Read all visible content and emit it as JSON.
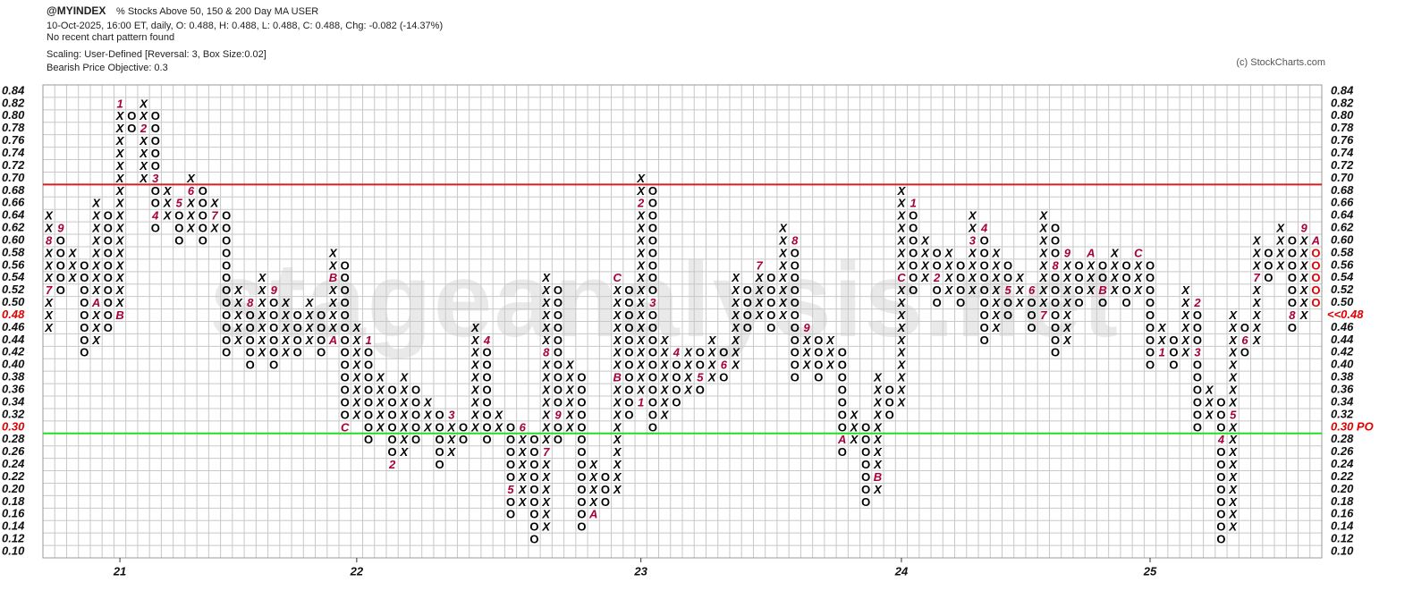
{
  "chart_data": {
    "type": "point_and_figure",
    "symbol": "@MYINDEX",
    "title": "% Stocks Above 50, 150 & 200 Day MA  USER",
    "info": "10-Oct-2025, 16:00 ET, daily, O: 0.488, H: 0.488, L: 0.488, C: 0.488, Chg: -0.082 (-14.37%)",
    "pattern_note": "No recent chart pattern found",
    "scaling": "Scaling: User-Defined [Reversal: 3, Box Size:0.02]",
    "objective": "Bearish Price Objective: 0.3",
    "copyright": "(c) StockCharts.com",
    "watermark": "stageanalysis.net",
    "box_size": 0.02,
    "ylim": [
      0.09,
      0.85
    ],
    "yticks": [
      0.84,
      0.82,
      {
        "value": 0.8,
        "label": "0.80"
      },
      0.78,
      0.76,
      0.74,
      0.72,
      {
        "value": 0.7,
        "label": "0.70"
      },
      0.68,
      0.66,
      0.64,
      0.62,
      {
        "value": 0.6,
        "label": "0.60"
      },
      0.58,
      0.56,
      0.54,
      0.52,
      {
        "value": 0.5,
        "label": "0.50"
      },
      0.48,
      0.46,
      0.44,
      0.42,
      {
        "value": 0.4,
        "label": "0.40"
      },
      0.38,
      0.36,
      0.34,
      0.32,
      {
        "value": 0.3,
        "label": "0.30"
      },
      0.28,
      0.26,
      0.24,
      0.22,
      {
        "value": 0.2,
        "label": "0.20"
      },
      0.18,
      0.16,
      0.14,
      0.12,
      {
        "value": 0.1,
        "label": "0.10"
      }
    ],
    "resistance_line": {
      "value": 0.7,
      "color": "#d42020"
    },
    "objective_line": {
      "value": 0.3,
      "color": "#22dd22",
      "label": "0.30 PO"
    },
    "last_price": {
      "value": 0.48,
      "label": "<<0.48"
    },
    "colors": {
      "box": "#000000",
      "month": "#a8003a",
      "current": "#e00000",
      "highlight": "#e00000"
    },
    "columns": [
      {
        "t": "X",
        "lo": 0.46,
        "hi": 0.64,
        "m": [
          [
            0.52,
            "7"
          ],
          [
            0.6,
            "8"
          ]
        ]
      },
      {
        "t": "O",
        "lo": 0.52,
        "hi": 0.62,
        "m": [
          [
            0.62,
            "9"
          ]
        ]
      },
      {
        "t": "X",
        "lo": 0.54,
        "hi": 0.58,
        "m": []
      },
      {
        "t": "O",
        "lo": 0.42,
        "hi": 0.56,
        "m": []
      },
      {
        "t": "X",
        "lo": 0.44,
        "hi": 0.66,
        "m": [
          [
            0.5,
            "A"
          ]
        ]
      },
      {
        "t": "O",
        "lo": 0.46,
        "hi": 0.64,
        "m": []
      },
      {
        "t": "X",
        "lo": 0.48,
        "hi": 0.82,
        "m": [
          [
            0.48,
            "B"
          ],
          [
            0.82,
            "1"
          ]
        ],
        "label": "21"
      },
      {
        "t": "O",
        "lo": 0.78,
        "hi": 0.8,
        "m": []
      },
      {
        "t": "X",
        "lo": 0.7,
        "hi": 0.82,
        "m": [
          [
            0.78,
            "2"
          ]
        ]
      },
      {
        "t": "O",
        "lo": 0.62,
        "hi": 0.8,
        "m": [
          [
            0.7,
            "3"
          ],
          [
            0.64,
            "4"
          ]
        ]
      },
      {
        "t": "X",
        "lo": 0.64,
        "hi": 0.68,
        "m": []
      },
      {
        "t": "O",
        "lo": 0.6,
        "hi": 0.66,
        "m": [
          [
            0.66,
            "5"
          ]
        ]
      },
      {
        "t": "X",
        "lo": 0.62,
        "hi": 0.7,
        "m": [
          [
            0.68,
            "6"
          ]
        ]
      },
      {
        "t": "O",
        "lo": 0.6,
        "hi": 0.68,
        "m": []
      },
      {
        "t": "X",
        "lo": 0.62,
        "hi": 0.66,
        "m": [
          [
            0.64,
            "7"
          ]
        ]
      },
      {
        "t": "O",
        "lo": 0.42,
        "hi": 0.64,
        "m": []
      },
      {
        "t": "X",
        "lo": 0.44,
        "hi": 0.52,
        "m": []
      },
      {
        "t": "O",
        "lo": 0.4,
        "hi": 0.5,
        "m": [
          [
            0.5,
            "8"
          ]
        ]
      },
      {
        "t": "X",
        "lo": 0.42,
        "hi": 0.54,
        "m": []
      },
      {
        "t": "O",
        "lo": 0.4,
        "hi": 0.52,
        "m": [
          [
            0.52,
            "9"
          ]
        ]
      },
      {
        "t": "X",
        "lo": 0.42,
        "hi": 0.5,
        "m": []
      },
      {
        "t": "O",
        "lo": 0.42,
        "hi": 0.48,
        "m": []
      },
      {
        "t": "X",
        "lo": 0.44,
        "hi": 0.5,
        "m": []
      },
      {
        "t": "O",
        "lo": 0.42,
        "hi": 0.48,
        "m": []
      },
      {
        "t": "X",
        "lo": 0.44,
        "hi": 0.58,
        "m": [
          [
            0.44,
            "A"
          ],
          [
            0.54,
            "B"
          ]
        ]
      },
      {
        "t": "O",
        "lo": 0.3,
        "hi": 0.56,
        "m": [
          [
            0.3,
            "C"
          ]
        ]
      },
      {
        "t": "X",
        "lo": 0.32,
        "hi": 0.46,
        "m": [],
        "label": "22"
      },
      {
        "t": "O",
        "lo": 0.28,
        "hi": 0.44,
        "m": [
          [
            0.44,
            "1"
          ]
        ]
      },
      {
        "t": "X",
        "lo": 0.3,
        "hi": 0.38,
        "m": []
      },
      {
        "t": "O",
        "lo": 0.24,
        "hi": 0.36,
        "m": [
          [
            0.24,
            "2"
          ]
        ]
      },
      {
        "t": "X",
        "lo": 0.26,
        "hi": 0.38,
        "m": []
      },
      {
        "t": "O",
        "lo": 0.28,
        "hi": 0.36,
        "m": []
      },
      {
        "t": "X",
        "lo": 0.3,
        "hi": 0.34,
        "m": []
      },
      {
        "t": "O",
        "lo": 0.24,
        "hi": 0.32,
        "m": []
      },
      {
        "t": "X",
        "lo": 0.26,
        "hi": 0.32,
        "m": [
          [
            0.32,
            "3"
          ]
        ]
      },
      {
        "t": "O",
        "lo": 0.28,
        "hi": 0.3,
        "m": []
      },
      {
        "t": "X",
        "lo": 0.3,
        "hi": 0.46,
        "m": []
      },
      {
        "t": "O",
        "lo": 0.28,
        "hi": 0.44,
        "m": [
          [
            0.44,
            "4"
          ]
        ]
      },
      {
        "t": "X",
        "lo": 0.3,
        "hi": 0.32,
        "m": []
      },
      {
        "t": "O",
        "lo": 0.16,
        "hi": 0.3,
        "m": [
          [
            0.2,
            "5"
          ]
        ]
      },
      {
        "t": "X",
        "lo": 0.18,
        "hi": 0.3,
        "m": [
          [
            0.3,
            "6"
          ]
        ]
      },
      {
        "t": "O",
        "lo": 0.12,
        "hi": 0.28,
        "m": []
      },
      {
        "t": "X",
        "lo": 0.14,
        "hi": 0.54,
        "m": [
          [
            0.26,
            "7"
          ],
          [
            0.42,
            "8"
          ]
        ]
      },
      {
        "t": "O",
        "lo": 0.28,
        "hi": 0.52,
        "m": [
          [
            0.32,
            "9"
          ]
        ]
      },
      {
        "t": "X",
        "lo": 0.3,
        "hi": 0.4,
        "m": []
      },
      {
        "t": "O",
        "lo": 0.14,
        "hi": 0.38,
        "m": []
      },
      {
        "t": "X",
        "lo": 0.16,
        "hi": 0.24,
        "m": [
          [
            0.16,
            "A"
          ]
        ]
      },
      {
        "t": "O",
        "lo": 0.18,
        "hi": 0.22,
        "m": []
      },
      {
        "t": "X",
        "lo": 0.2,
        "hi": 0.54,
        "m": [
          [
            0.38,
            "B"
          ],
          [
            0.54,
            "C"
          ]
        ]
      },
      {
        "t": "O",
        "lo": 0.32,
        "hi": 0.52,
        "m": []
      },
      {
        "t": "X",
        "lo": 0.34,
        "hi": 0.7,
        "m": [
          [
            0.34,
            "1"
          ],
          [
            0.66,
            "2"
          ]
        ],
        "label": "23"
      },
      {
        "t": "O",
        "lo": 0.3,
        "hi": 0.68,
        "m": [
          [
            0.5,
            "3"
          ]
        ]
      },
      {
        "t": "X",
        "lo": 0.32,
        "hi": 0.44,
        "m": []
      },
      {
        "t": "O",
        "lo": 0.34,
        "hi": 0.42,
        "m": [
          [
            0.42,
            "4"
          ]
        ]
      },
      {
        "t": "X",
        "lo": 0.36,
        "hi": 0.42,
        "m": []
      },
      {
        "t": "O",
        "lo": 0.36,
        "hi": 0.42,
        "m": [
          [
            0.38,
            "5"
          ]
        ]
      },
      {
        "t": "X",
        "lo": 0.38,
        "hi": 0.44,
        "m": []
      },
      {
        "t": "O",
        "lo": 0.38,
        "hi": 0.42,
        "m": [
          [
            0.4,
            "6"
          ]
        ]
      },
      {
        "t": "X",
        "lo": 0.4,
        "hi": 0.54,
        "m": []
      },
      {
        "t": "O",
        "lo": 0.46,
        "hi": 0.52,
        "m": []
      },
      {
        "t": "X",
        "lo": 0.48,
        "hi": 0.56,
        "m": [
          [
            0.56,
            "7"
          ]
        ]
      },
      {
        "t": "O",
        "lo": 0.46,
        "hi": 0.54,
        "m": []
      },
      {
        "t": "X",
        "lo": 0.48,
        "hi": 0.62,
        "m": []
      },
      {
        "t": "O",
        "lo": 0.38,
        "hi": 0.6,
        "m": [
          [
            0.6,
            "8"
          ]
        ]
      },
      {
        "t": "X",
        "lo": 0.4,
        "hi": 0.46,
        "m": [
          [
            0.46,
            "9"
          ]
        ]
      },
      {
        "t": "O",
        "lo": 0.38,
        "hi": 0.44,
        "m": []
      },
      {
        "t": "X",
        "lo": 0.4,
        "hi": 0.44,
        "m": []
      },
      {
        "t": "O",
        "lo": 0.26,
        "hi": 0.42,
        "m": [
          [
            0.28,
            "A"
          ]
        ]
      },
      {
        "t": "X",
        "lo": 0.28,
        "hi": 0.32,
        "m": []
      },
      {
        "t": "O",
        "lo": 0.18,
        "hi": 0.3,
        "m": []
      },
      {
        "t": "X",
        "lo": 0.2,
        "hi": 0.38,
        "m": [
          [
            0.22,
            "B"
          ]
        ]
      },
      {
        "t": "O",
        "lo": 0.32,
        "hi": 0.36,
        "m": []
      },
      {
        "t": "X",
        "lo": 0.34,
        "hi": 0.68,
        "m": [
          [
            0.54,
            "C"
          ]
        ],
        "label": "24"
      },
      {
        "t": "O",
        "lo": 0.52,
        "hi": 0.66,
        "m": [
          [
            0.66,
            "1"
          ]
        ]
      },
      {
        "t": "X",
        "lo": 0.54,
        "hi": 0.6,
        "m": []
      },
      {
        "t": "O",
        "lo": 0.5,
        "hi": 0.58,
        "m": [
          [
            0.54,
            "2"
          ]
        ]
      },
      {
        "t": "X",
        "lo": 0.52,
        "hi": 0.58,
        "m": []
      },
      {
        "t": "O",
        "lo": 0.5,
        "hi": 0.56,
        "m": []
      },
      {
        "t": "X",
        "lo": 0.52,
        "hi": 0.64,
        "m": [
          [
            0.6,
            "3"
          ]
        ]
      },
      {
        "t": "O",
        "lo": 0.44,
        "hi": 0.62,
        "m": [
          [
            0.62,
            "4"
          ]
        ]
      },
      {
        "t": "X",
        "lo": 0.46,
        "hi": 0.58,
        "m": []
      },
      {
        "t": "O",
        "lo": 0.48,
        "hi": 0.56,
        "m": [
          [
            0.52,
            "5"
          ]
        ]
      },
      {
        "t": "X",
        "lo": 0.5,
        "hi": 0.54,
        "m": []
      },
      {
        "t": "O",
        "lo": 0.46,
        "hi": 0.52,
        "m": [
          [
            0.52,
            "6"
          ]
        ]
      },
      {
        "t": "X",
        "lo": 0.48,
        "hi": 0.64,
        "m": [
          [
            0.48,
            "7"
          ]
        ]
      },
      {
        "t": "O",
        "lo": 0.42,
        "hi": 0.62,
        "m": [
          [
            0.56,
            "8"
          ]
        ]
      },
      {
        "t": "X",
        "lo": 0.44,
        "hi": 0.58,
        "m": [
          [
            0.58,
            "9"
          ]
        ]
      },
      {
        "t": "O",
        "lo": 0.5,
        "hi": 0.56,
        "m": []
      },
      {
        "t": "X",
        "lo": 0.52,
        "hi": 0.58,
        "m": [
          [
            0.58,
            "A"
          ]
        ]
      },
      {
        "t": "O",
        "lo": 0.5,
        "hi": 0.56,
        "m": [
          [
            0.52,
            "B"
          ]
        ]
      },
      {
        "t": "X",
        "lo": 0.52,
        "hi": 0.58,
        "m": []
      },
      {
        "t": "O",
        "lo": 0.5,
        "hi": 0.56,
        "m": []
      },
      {
        "t": "X",
        "lo": 0.52,
        "hi": 0.58,
        "m": [
          [
            0.58,
            "C"
          ]
        ]
      },
      {
        "t": "O",
        "lo": 0.4,
        "hi": 0.56,
        "m": [],
        "label": "25"
      },
      {
        "t": "X",
        "lo": 0.42,
        "hi": 0.46,
        "m": [
          [
            0.42,
            "1"
          ]
        ]
      },
      {
        "t": "O",
        "lo": 0.4,
        "hi": 0.44,
        "m": []
      },
      {
        "t": "X",
        "lo": 0.42,
        "hi": 0.52,
        "m": []
      },
      {
        "t": "O",
        "lo": 0.3,
        "hi": 0.5,
        "m": [
          [
            0.5,
            "2"
          ],
          [
            0.42,
            "3"
          ]
        ]
      },
      {
        "t": "X",
        "lo": 0.32,
        "hi": 0.36,
        "m": []
      },
      {
        "t": "O",
        "lo": 0.12,
        "hi": 0.34,
        "m": [
          [
            0.28,
            "4"
          ]
        ]
      },
      {
        "t": "X",
        "lo": 0.14,
        "hi": 0.48,
        "m": [
          [
            0.32,
            "5"
          ]
        ]
      },
      {
        "t": "O",
        "lo": 0.42,
        "hi": 0.46,
        "m": [
          [
            0.44,
            "6"
          ]
        ]
      },
      {
        "t": "X",
        "lo": 0.44,
        "hi": 0.6,
        "m": [
          [
            0.54,
            "7"
          ]
        ]
      },
      {
        "t": "O",
        "lo": 0.54,
        "hi": 0.58,
        "m": []
      },
      {
        "t": "X",
        "lo": 0.56,
        "hi": 0.62,
        "m": []
      },
      {
        "t": "O",
        "lo": 0.46,
        "hi": 0.6,
        "m": [
          [
            0.48,
            "8"
          ]
        ]
      },
      {
        "t": "X",
        "lo": 0.48,
        "hi": 0.62,
        "m": [
          [
            0.62,
            "9"
          ]
        ]
      },
      {
        "t": "O",
        "lo": 0.5,
        "hi": 0.6,
        "m": [
          [
            0.6,
            "A"
          ]
        ]
      }
    ]
  }
}
